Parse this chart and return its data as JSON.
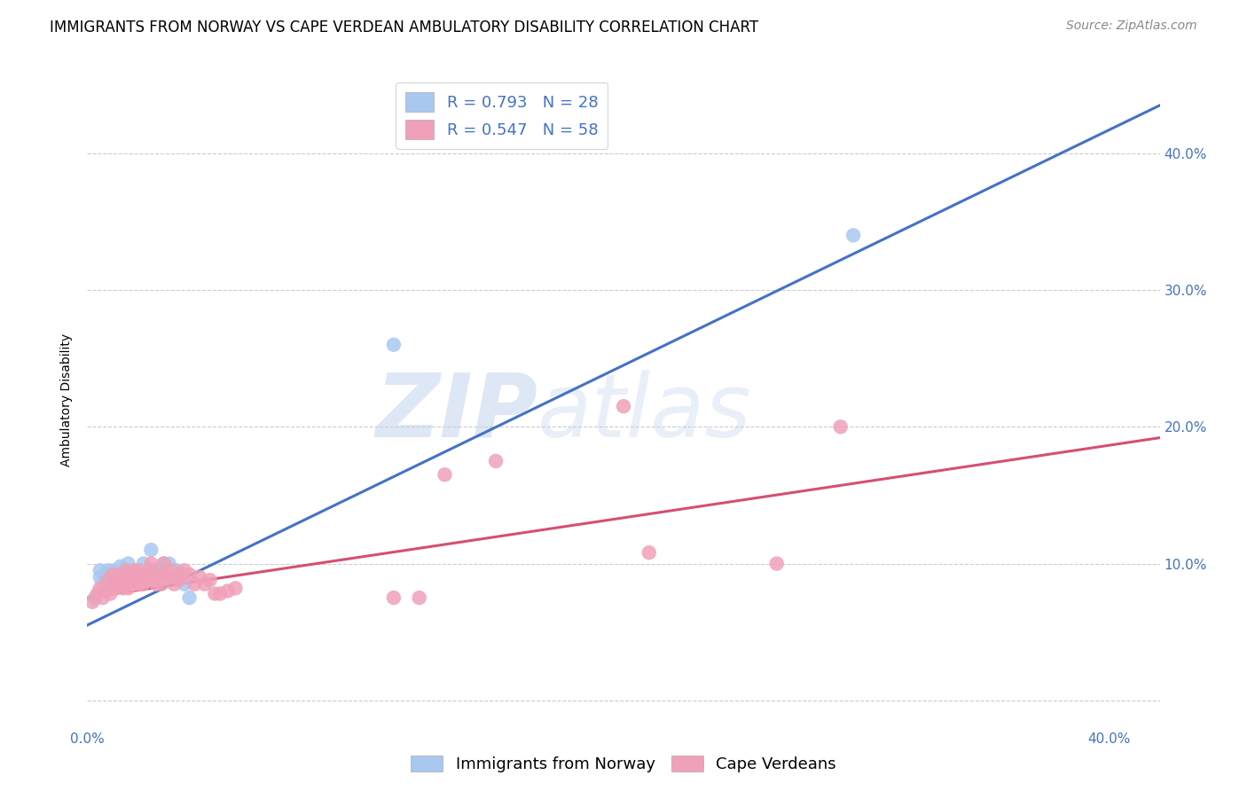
{
  "title": "IMMIGRANTS FROM NORWAY VS CAPE VERDEAN AMBULATORY DISABILITY CORRELATION CHART",
  "source": "Source: ZipAtlas.com",
  "ylabel": "Ambulatory Disability",
  "xlim": [
    0.0,
    0.42
  ],
  "ylim": [
    -0.02,
    0.46
  ],
  "yticks": [
    0.0,
    0.1,
    0.2,
    0.3,
    0.4
  ],
  "xticks": [
    0.0,
    0.08,
    0.16,
    0.24,
    0.32,
    0.4
  ],
  "legend_entry1": "R = 0.793   N = 28",
  "legend_entry2": "R = 0.547   N = 58",
  "norway_color": "#a8c8f0",
  "cape_color": "#f0a0b8",
  "norway_line_color": "#4472C4",
  "cape_line_color": "#d45070",
  "background_color": "#ffffff",
  "norway_scatter_x": [
    0.003,
    0.005,
    0.005,
    0.006,
    0.007,
    0.008,
    0.009,
    0.01,
    0.01,
    0.012,
    0.013,
    0.014,
    0.015,
    0.016,
    0.018,
    0.02,
    0.022,
    0.024,
    0.025,
    0.026,
    0.028,
    0.03,
    0.032,
    0.035,
    0.038,
    0.04,
    0.3,
    0.12
  ],
  "norway_scatter_y": [
    0.075,
    0.09,
    0.095,
    0.082,
    0.088,
    0.095,
    0.085,
    0.09,
    0.095,
    0.092,
    0.098,
    0.085,
    0.095,
    0.1,
    0.088,
    0.095,
    0.1,
    0.095,
    0.11,
    0.095,
    0.095,
    0.1,
    0.1,
    0.095,
    0.085,
    0.075,
    0.34,
    0.26
  ],
  "cape_scatter_x": [
    0.002,
    0.004,
    0.005,
    0.006,
    0.007,
    0.008,
    0.009,
    0.01,
    0.01,
    0.011,
    0.012,
    0.013,
    0.014,
    0.015,
    0.015,
    0.016,
    0.017,
    0.018,
    0.018,
    0.019,
    0.02,
    0.02,
    0.021,
    0.022,
    0.023,
    0.024,
    0.025,
    0.025,
    0.026,
    0.027,
    0.028,
    0.029,
    0.03,
    0.03,
    0.032,
    0.033,
    0.034,
    0.035,
    0.036,
    0.037,
    0.038,
    0.04,
    0.042,
    0.044,
    0.046,
    0.048,
    0.05,
    0.052,
    0.055,
    0.058,
    0.12,
    0.13,
    0.14,
    0.16,
    0.21,
    0.22,
    0.27,
    0.295
  ],
  "cape_scatter_y": [
    0.072,
    0.078,
    0.082,
    0.075,
    0.08,
    0.088,
    0.078,
    0.085,
    0.092,
    0.082,
    0.088,
    0.092,
    0.082,
    0.088,
    0.095,
    0.082,
    0.09,
    0.085,
    0.095,
    0.088,
    0.085,
    0.095,
    0.09,
    0.085,
    0.092,
    0.088,
    0.095,
    0.1,
    0.09,
    0.085,
    0.09,
    0.085,
    0.092,
    0.1,
    0.09,
    0.095,
    0.085,
    0.09,
    0.088,
    0.092,
    0.095,
    0.092,
    0.085,
    0.09,
    0.085,
    0.088,
    0.078,
    0.078,
    0.08,
    0.082,
    0.075,
    0.075,
    0.165,
    0.175,
    0.215,
    0.108,
    0.1,
    0.2
  ],
  "norway_line_x": [
    0.0,
    0.42
  ],
  "norway_line_y": [
    0.055,
    0.435
  ],
  "cape_line_x": [
    0.0,
    0.42
  ],
  "cape_line_y": [
    0.075,
    0.192
  ],
  "watermark_zip": "ZIP",
  "watermark_atlas": "atlas",
  "title_fontsize": 12,
  "axis_label_fontsize": 10,
  "tick_fontsize": 11,
  "source_fontsize": 10,
  "legend_fontsize": 13
}
